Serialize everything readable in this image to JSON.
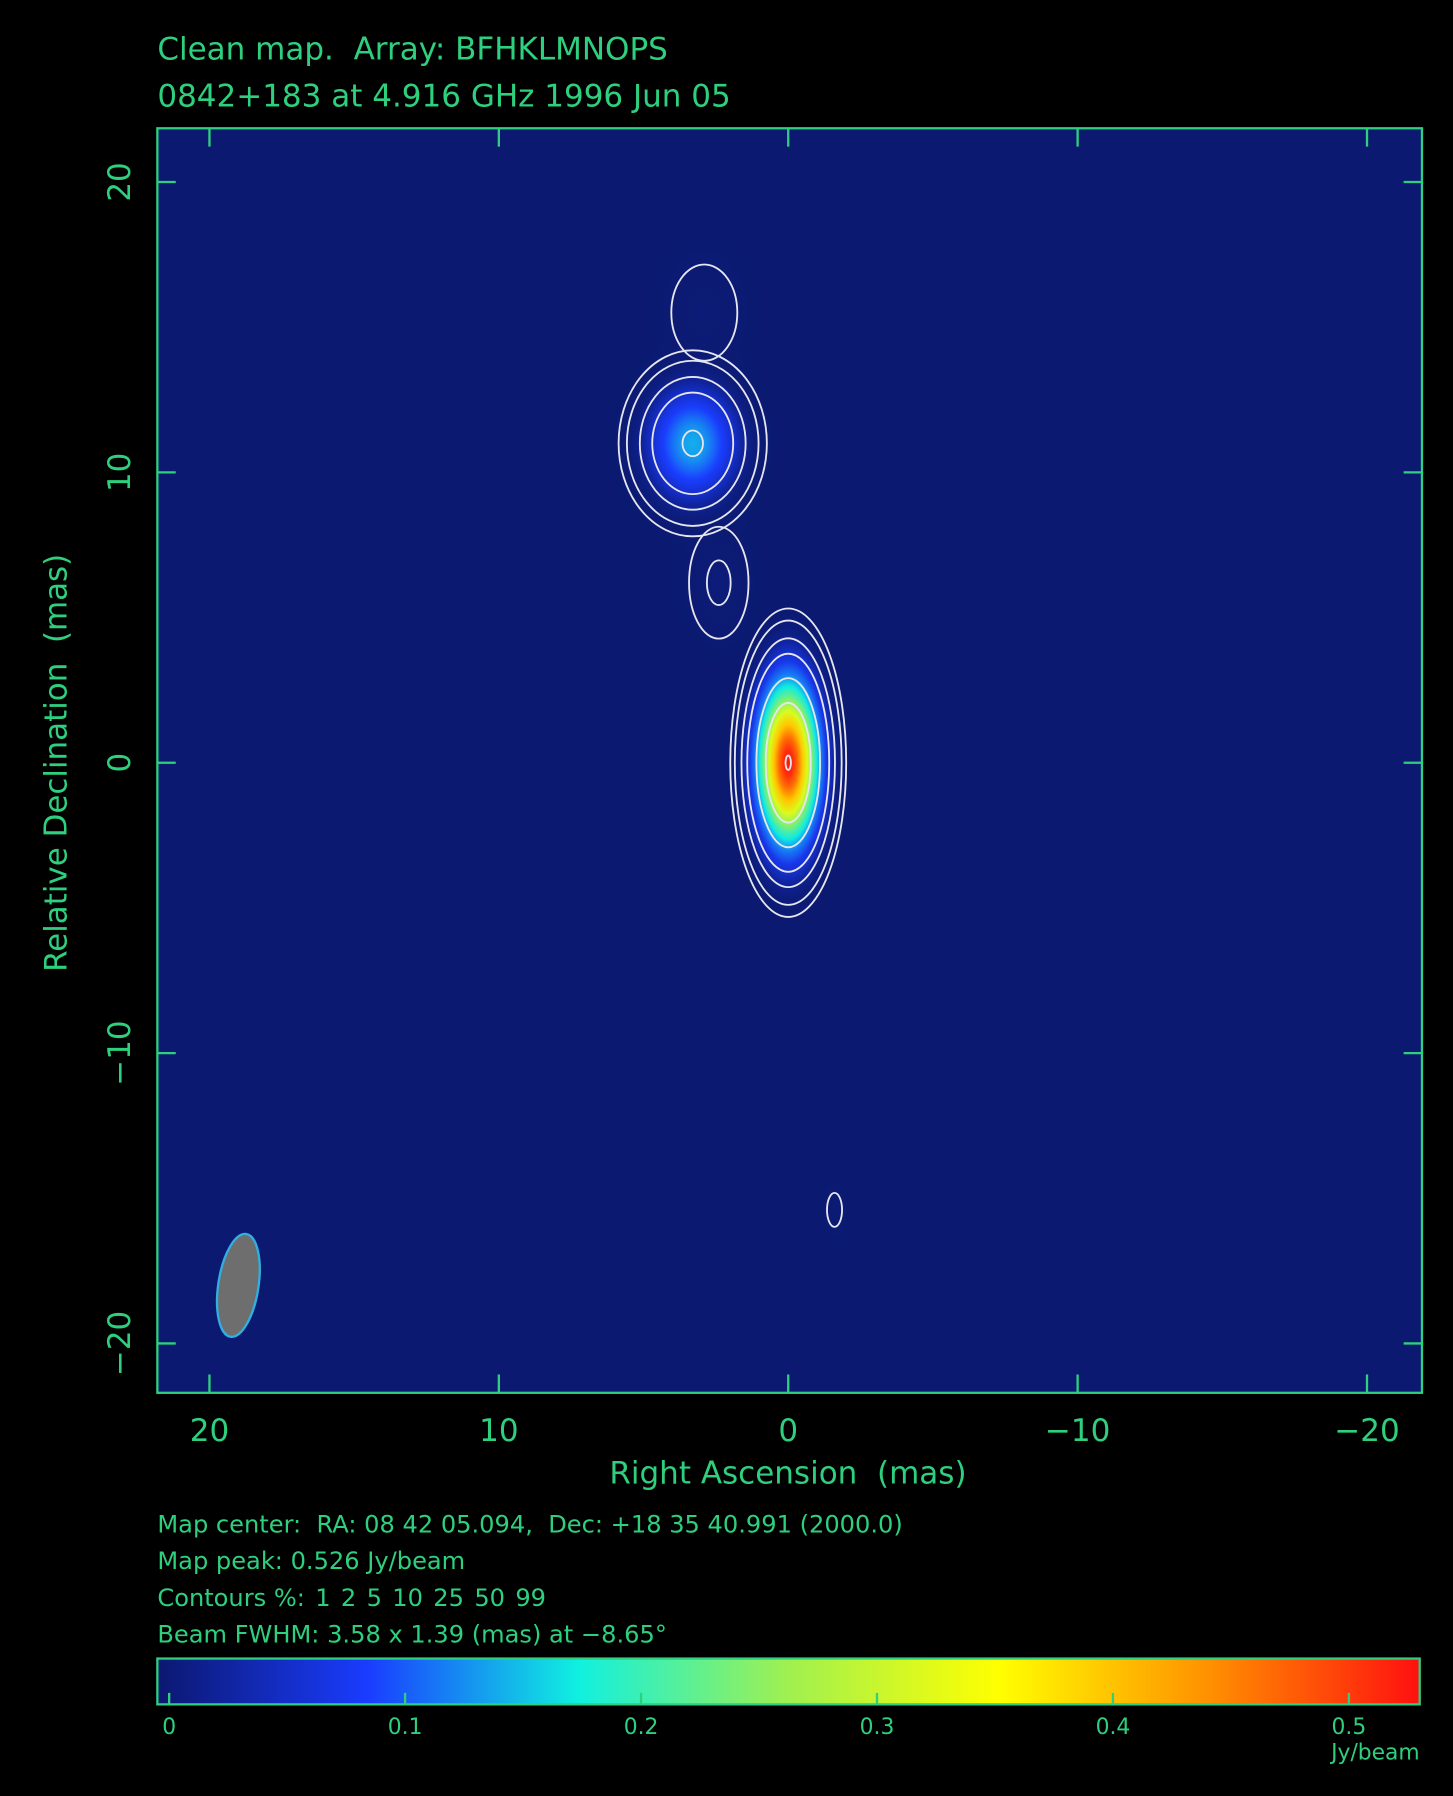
{
  "chart_data": {
    "type": "contour",
    "title": "Clean map.  Array: BFHKLMNOPS",
    "subtitle": "0842+183 at 4.916 GHz 1996 Jun 05",
    "xlabel": "Right Ascension  (mas)",
    "ylabel": "Relative Declination  (mas)",
    "xlim": [
      21.8,
      -21.9
    ],
    "ylim": [
      -21.7,
      21.85
    ],
    "xticks": [
      20,
      10,
      0,
      {
        "value": -10,
        "label": "−10"
      },
      {
        "value": -20,
        "label": "−20"
      }
    ],
    "yticks": [
      {
        "value": -20,
        "label": "−20"
      },
      {
        "value": -10,
        "label": "−10"
      },
      0,
      10,
      20
    ],
    "components": [
      {
        "x": 0,
        "y": 0,
        "peak": 0.526,
        "sx": 0.66,
        "sy": 1.75
      },
      {
        "x": 3.3,
        "y": 11,
        "peak": 0.14,
        "sx": 1.0,
        "sy": 1.25
      },
      {
        "x": 2.4,
        "y": 6.2,
        "peak": 0.012,
        "sx": 0.8,
        "sy": 1.5
      },
      {
        "x": 2.9,
        "y": 15.5,
        "peak": 0.009,
        "sx": 1.1,
        "sy": 1.6
      },
      {
        "x": -1.6,
        "y": -15.4,
        "peak": 0.0065,
        "sx": 0.4,
        "sy": 0.9
      }
    ],
    "beam": {
      "x": 19,
      "y": -18,
      "major": 3.58,
      "minor": 1.39,
      "pa": -8.65,
      "color": "#6e6e6e"
    },
    "notes": [
      "Map center:  RA: 08 42 05.094,  Dec: +18 35 40.991 (2000.0)",
      "Map peak: 0.526 Jy/beam"
    ],
    "contours_label": "Contours %:",
    "contour_levels": [
      1,
      2,
      5,
      10,
      25,
      50,
      99
    ],
    "beam_note": "Beam FWHM: 3.58 x 1.39 (mas) at −8.65°",
    "background": "#0b1a70",
    "contour_color": "#e6e6f0",
    "colormap": [
      "#0b1870",
      "#1a3cff",
      "#10f0e0",
      "#a0f050",
      "#ffff00",
      "#ff9000",
      "#ff1010"
    ],
    "colorbar": {
      "clim": [
        -0.005,
        0.53
      ],
      "ticks": [
        0,
        0.1,
        0.2,
        0.3,
        0.4,
        0.5
      ],
      "label": "Jy/beam"
    }
  }
}
